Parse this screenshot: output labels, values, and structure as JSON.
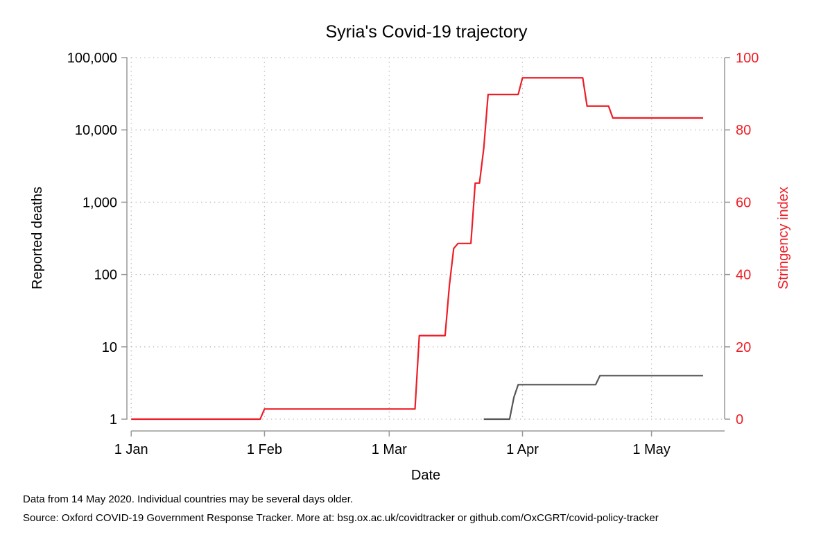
{
  "chart_data": {
    "type": "line",
    "title": "Syria's Covid-19 trajectory",
    "xlabel": "Date",
    "ylabel_left": "Reported deaths",
    "ylabel_right": "Stringency index",
    "x_ticks": [
      {
        "date": "2020-01-01",
        "label": "1 Jan"
      },
      {
        "date": "2020-02-01",
        "label": "1 Feb"
      },
      {
        "date": "2020-03-01",
        "label": "1 Mar"
      },
      {
        "date": "2020-04-01",
        "label": "1 Apr"
      },
      {
        "date": "2020-05-01",
        "label": "1 May"
      }
    ],
    "xlim": [
      "2019-12-31",
      "2020-05-18"
    ],
    "y_left": {
      "scale": "log",
      "range": [
        1,
        100000
      ],
      "ticks": [
        {
          "value": 1,
          "label": "1"
        },
        {
          "value": 10,
          "label": "10"
        },
        {
          "value": 100,
          "label": "100"
        },
        {
          "value": 1000,
          "label": "1,000"
        },
        {
          "value": 10000,
          "label": "10,000"
        },
        {
          "value": 100000,
          "label": "100,000"
        }
      ]
    },
    "y_right": {
      "scale": "linear",
      "range": [
        0,
        100
      ],
      "ticks": [
        {
          "value": 0,
          "label": "0"
        },
        {
          "value": 20,
          "label": "20"
        },
        {
          "value": 40,
          "label": "40"
        },
        {
          "value": 60,
          "label": "60"
        },
        {
          "value": 80,
          "label": "80"
        },
        {
          "value": 100,
          "label": "100"
        }
      ]
    },
    "grid": true,
    "series": [
      {
        "name": "Stringency index",
        "axis": "right",
        "color": "#ee1c25",
        "points": [
          [
            "2020-01-01",
            0
          ],
          [
            "2020-01-31",
            0
          ],
          [
            "2020-02-01",
            2.8
          ],
          [
            "2020-03-07",
            2.8
          ],
          [
            "2020-03-08",
            23.1
          ],
          [
            "2020-03-14",
            23.1
          ],
          [
            "2020-03-15",
            37
          ],
          [
            "2020-03-16",
            47.2
          ],
          [
            "2020-03-17",
            48.6
          ],
          [
            "2020-03-20",
            48.6
          ],
          [
            "2020-03-21",
            65.3
          ],
          [
            "2020-03-22",
            65.3
          ],
          [
            "2020-03-23",
            75
          ],
          [
            "2020-03-24",
            89.8
          ],
          [
            "2020-03-31",
            89.8
          ],
          [
            "2020-04-01",
            94.4
          ],
          [
            "2020-04-15",
            94.4
          ],
          [
            "2020-04-16",
            86.6
          ],
          [
            "2020-04-21",
            86.6
          ],
          [
            "2020-04-22",
            83.3
          ],
          [
            "2020-05-13",
            83.3
          ]
        ]
      },
      {
        "name": "Reported deaths",
        "axis": "left",
        "color": "#555555",
        "points": [
          [
            "2020-03-23",
            1
          ],
          [
            "2020-03-29",
            1
          ],
          [
            "2020-03-30",
            2
          ],
          [
            "2020-03-31",
            3
          ],
          [
            "2020-04-18",
            3
          ],
          [
            "2020-04-19",
            4
          ],
          [
            "2020-05-13",
            4
          ]
        ]
      }
    ]
  },
  "notes": {
    "line1": "Data from 14 May 2020. Individual countries may be several days older.",
    "line2": "Source: Oxford COVID-19 Government Response Tracker. More at: bsg.ox.ac.uk/covidtracker or github.com/OxCGRT/covid-policy-tracker"
  }
}
